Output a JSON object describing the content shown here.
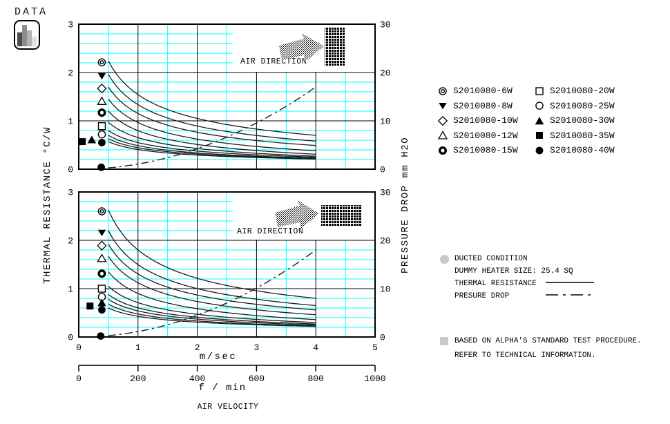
{
  "header": {
    "label": "DATA",
    "icon": "bar-chart-icon"
  },
  "colors": {
    "grid_minor": "#00ffff",
    "grid_major": "#000000",
    "curve": "#1c1c1c",
    "text": "#000000",
    "bullet_gray": "#c8c8c8",
    "background": "#ffffff"
  },
  "legend": {
    "items": [
      {
        "marker": "double-circle",
        "label": "S2010080-6W"
      },
      {
        "marker": "triangle-down-filled",
        "label": "S2010080-8W"
      },
      {
        "marker": "diamond-open",
        "label": "S2010080-10W"
      },
      {
        "marker": "triangle-up-open",
        "label": "S2010080-12W"
      },
      {
        "marker": "donut",
        "label": "S2010080-15W"
      },
      {
        "marker": "square-open",
        "label": "S2010080-20W"
      },
      {
        "marker": "circle-open",
        "label": "S2010080-25W"
      },
      {
        "marker": "triangle-up-filled",
        "label": "S2010080-30W"
      },
      {
        "marker": "square-filled",
        "label": "S2010080-35W"
      },
      {
        "marker": "circle-filled",
        "label": "S2010080-40W"
      }
    ]
  },
  "notes": {
    "items": [
      {
        "bullet": "circle",
        "text": "DUCTED CONDITION"
      },
      {
        "bullet": "",
        "text": "DUMMY HEATER SIZE: 25.4 SQ"
      },
      {
        "bullet": "",
        "text": "THERMAL RESISTANCE",
        "line_sample": "solid"
      },
      {
        "bullet": "",
        "text": "PRESURE DROP",
        "line_sample": "dash-dot"
      }
    ]
  },
  "footnote": {
    "bullet": "square",
    "line1": "BASED ON ALPHA'S STANDARD TEST PROCEDURE.",
    "line2": "REFER TO TECHNICAL INFORMATION."
  },
  "axis_labels": {
    "left": "THERMAL RESISTANCE",
    "left_units": "°C/W",
    "right": "PRESSURE DROP",
    "right_units": "mm H2O",
    "x1": "m/sec",
    "x2": "f / min",
    "x_title": "AIR VELOCITY"
  },
  "chart_data": [
    {
      "type": "line",
      "position": "top",
      "x_axis": {
        "label": "m/sec",
        "min": 0,
        "max": 5,
        "major_ticks": [
          1,
          2,
          3,
          4
        ],
        "minor_ticks": [
          0.5,
          1.5,
          2.5,
          3.5,
          4.5
        ]
      },
      "y_left": {
        "label": "THERMAL RESISTANCE",
        "units": "°C/W",
        "min": 0,
        "max": 3,
        "ticks": [
          0,
          1,
          2,
          3
        ],
        "minor_step": 0.2
      },
      "y_right": {
        "label": "PRESSURE DROP",
        "units": "mm H2O",
        "min": 0,
        "max": 30,
        "ticks": [
          0,
          10,
          20,
          30
        ]
      },
      "air_direction": {
        "label": "AIR DIRECTION",
        "heatsink_orientation": "vertical"
      },
      "series": [
        {
          "name": "S2010080-6W",
          "marker": "double-circle",
          "marker_v": 0.39,
          "marker_r": 2.21,
          "v_start": 0.5,
          "r_start": 2.24,
          "v_end": 4,
          "r_end": 0.7
        },
        {
          "name": "S2010080-8W",
          "marker": "triangle-down-filled",
          "marker_v": 0.39,
          "marker_r": 1.93,
          "v_start": 0.5,
          "r_start": 1.96,
          "v_end": 4,
          "r_end": 0.58
        },
        {
          "name": "S2010080-10W",
          "marker": "diamond-open",
          "marker_v": 0.39,
          "marker_r": 1.67,
          "v_start": 0.5,
          "r_start": 1.7,
          "v_end": 4,
          "r_end": 0.49
        },
        {
          "name": "S2010080-12W",
          "marker": "triangle-up-open",
          "marker_v": 0.39,
          "marker_r": 1.41,
          "v_start": 0.5,
          "r_start": 1.45,
          "v_end": 4,
          "r_end": 0.38
        },
        {
          "name": "S2010080-15W",
          "marker": "donut",
          "marker_v": 0.39,
          "marker_r": 1.17,
          "v_start": 0.5,
          "r_start": 1.2,
          "v_end": 4,
          "r_end": 0.31
        },
        {
          "name": "S2010080-20W",
          "marker": "square-open",
          "marker_v": 0.39,
          "marker_r": 0.89,
          "v_start": 0.5,
          "r_start": 0.97,
          "v_end": 4,
          "r_end": 0.27
        },
        {
          "name": "S2010080-25W",
          "marker": "circle-open",
          "marker_v": 0.39,
          "marker_r": 0.72,
          "v_start": 0.5,
          "r_start": 0.8,
          "v_end": 4,
          "r_end": 0.25
        },
        {
          "name": "S2010080-30W",
          "marker": "triangle-up-filled",
          "marker_v": 0.22,
          "marker_r": 0.61,
          "v_start": 0.5,
          "r_start": 0.7,
          "v_end": 4,
          "r_end": 0.23
        },
        {
          "name": "S2010080-35W",
          "marker": "square-filled",
          "marker_v": 0.06,
          "marker_r": 0.57,
          "v_start": 0.5,
          "r_start": 0.63,
          "v_end": 4,
          "r_end": 0.22
        },
        {
          "name": "S2010080-40W",
          "marker": "circle-filled",
          "marker_v": 0.39,
          "marker_r": 0.55,
          "v_start": 0.5,
          "r_start": 0.57,
          "v_end": 4,
          "r_end": 0.21
        }
      ],
      "pressure_curve": {
        "name": "PRESURE DROP",
        "style": "dash-dot",
        "marker": "circle-filled",
        "marker_v": 0.38,
        "marker_mm": 0.4,
        "v_start": 0.5,
        "v_end": 4,
        "mm_end": 17
      }
    },
    {
      "type": "line",
      "position": "bottom",
      "x_axis": {
        "label": "m/sec",
        "min": 0,
        "max": 5,
        "major_ticks": [
          1,
          2,
          3,
          4
        ],
        "minor_ticks": [
          0.5,
          1.5,
          2.5,
          3.5,
          4.5
        ],
        "tick_labels": [
          0,
          1,
          2,
          3,
          4,
          5
        ]
      },
      "x_axis2": {
        "label": "f / min",
        "tick_labels": [
          0,
          200,
          400,
          600,
          800,
          1000
        ]
      },
      "y_left": {
        "label": "THERMAL RESISTANCE",
        "units": "°C/W",
        "min": 0,
        "max": 3,
        "ticks": [
          0,
          1,
          2,
          3
        ],
        "minor_step": 0.2
      },
      "y_right": {
        "label": "PRESSURE DROP",
        "units": "mm H2O",
        "min": 0,
        "max": 30,
        "ticks": [
          0,
          10,
          20,
          30
        ]
      },
      "air_direction": {
        "label": "AIR DIRECTION",
        "heatsink_orientation": "horizontal"
      },
      "series": [
        {
          "name": "S2010080-6W",
          "marker": "double-circle",
          "marker_v": 0.39,
          "marker_r": 2.6,
          "v_start": 0.5,
          "r_start": 2.63,
          "v_end": 4,
          "r_end": 0.8
        },
        {
          "name": "S2010080-8W",
          "marker": "triangle-down-filled",
          "marker_v": 0.39,
          "marker_r": 2.16,
          "v_start": 0.5,
          "r_start": 2.2,
          "v_end": 4,
          "r_end": 0.65
        },
        {
          "name": "S2010080-10W",
          "marker": "diamond-open",
          "marker_v": 0.39,
          "marker_r": 1.89,
          "v_start": 0.5,
          "r_start": 1.92,
          "v_end": 4,
          "r_end": 0.56
        },
        {
          "name": "S2010080-12W",
          "marker": "triangle-up-open",
          "marker_v": 0.39,
          "marker_r": 1.63,
          "v_start": 0.5,
          "r_start": 1.67,
          "v_end": 4,
          "r_end": 0.46
        },
        {
          "name": "S2010080-15W",
          "marker": "donut",
          "marker_v": 0.39,
          "marker_r": 1.31,
          "v_start": 0.5,
          "r_start": 1.35,
          "v_end": 4,
          "r_end": 0.36
        },
        {
          "name": "S2010080-20W",
          "marker": "square-open",
          "marker_v": 0.39,
          "marker_r": 1.0,
          "v_start": 0.5,
          "r_start": 1.05,
          "v_end": 4,
          "r_end": 0.3
        },
        {
          "name": "S2010080-25W",
          "marker": "circle-open",
          "marker_v": 0.39,
          "marker_r": 0.83,
          "v_start": 0.5,
          "r_start": 0.88,
          "v_end": 4,
          "r_end": 0.27
        },
        {
          "name": "S2010080-30W",
          "marker": "triangle-up-filled",
          "marker_v": 0.39,
          "marker_r": 0.71,
          "v_start": 0.5,
          "r_start": 0.78,
          "v_end": 4,
          "r_end": 0.25
        },
        {
          "name": "S2010080-35W",
          "marker": "square-filled",
          "marker_v": 0.19,
          "marker_r": 0.64,
          "v_start": 0.5,
          "r_start": 0.68,
          "v_end": 4,
          "r_end": 0.23
        },
        {
          "name": "S2010080-40W",
          "marker": "circle-filled",
          "marker_v": 0.39,
          "marker_r": 0.56,
          "v_start": 0.5,
          "r_start": 0.6,
          "v_end": 4,
          "r_end": 0.22
        }
      ],
      "pressure_curve": {
        "name": "PRESURE DROP",
        "style": "dash-dot",
        "marker": "circle-filled",
        "marker_v": 0.37,
        "marker_mm": 0.2,
        "v_start": 0.5,
        "v_end": 4,
        "mm_end": 18
      }
    }
  ]
}
